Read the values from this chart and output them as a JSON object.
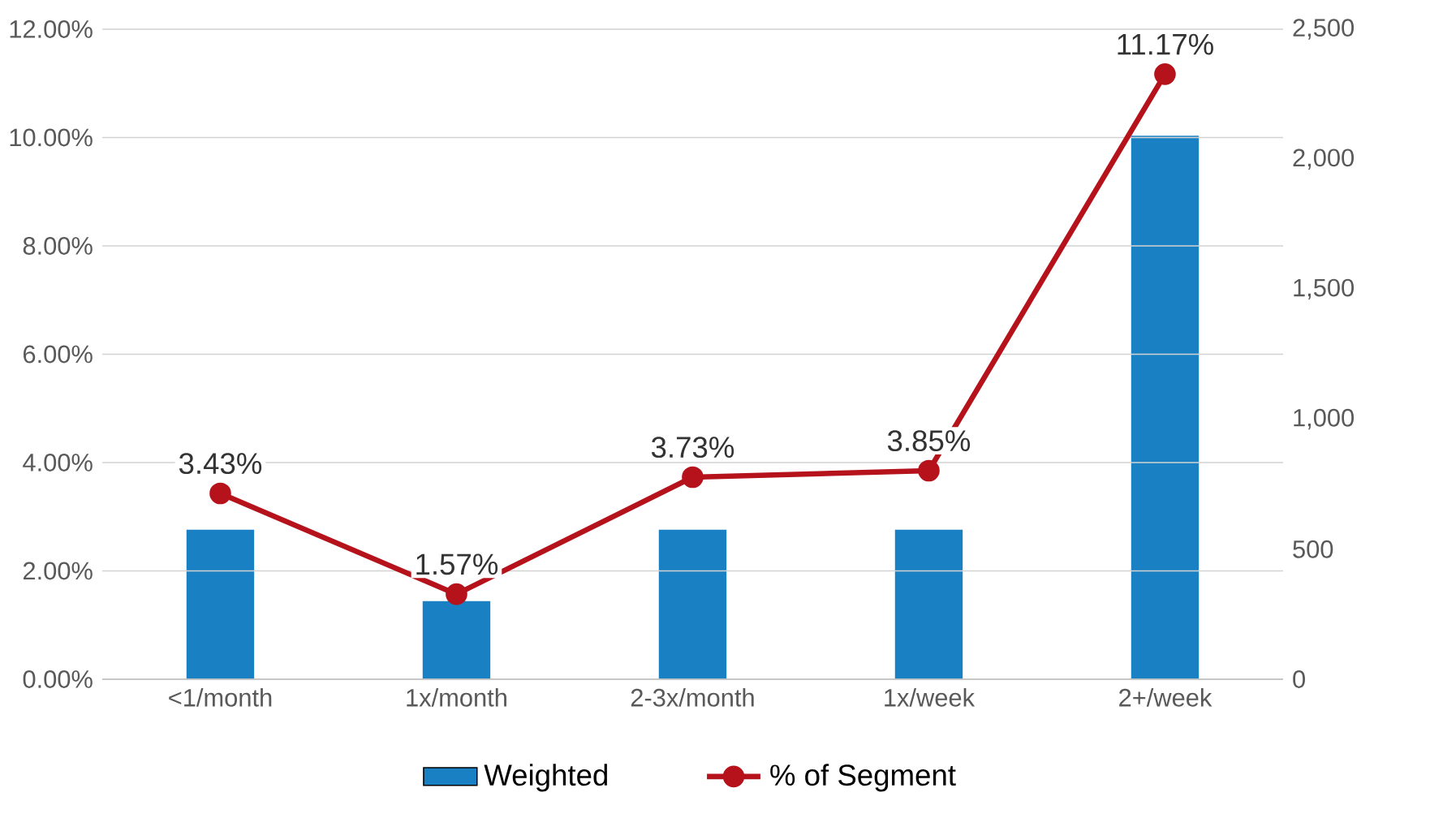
{
  "chart_data": {
    "type": "bar",
    "categories": [
      "<1/month",
      "1x/month",
      "2-3x/month",
      "1x/week",
      "2+/week"
    ],
    "series": [
      {
        "name": "Weighted",
        "axis": "y2",
        "color": "#1a80c4",
        "values": [
          575,
          300,
          575,
          575,
          2090
        ]
      },
      {
        "name": "% of Segment",
        "type": "line",
        "color": "#b5121b",
        "marker": "circle",
        "values": [
          3.43,
          1.57,
          3.73,
          3.85,
          11.17
        ],
        "value_labels": [
          "3.43%",
          "1.57%",
          "3.73%",
          "3.85%",
          "11.17%"
        ]
      }
    ],
    "ylim": [
      0,
      12
    ],
    "yticks": [
      {
        "value": 0,
        "label": "0.00%"
      },
      {
        "value": 2,
        "label": "2.00%"
      },
      {
        "value": 4,
        "label": "4.00%"
      },
      {
        "value": 6,
        "label": "6.00%"
      },
      {
        "value": 8,
        "label": "8.00%"
      },
      {
        "value": 10,
        "label": "10.00%"
      },
      {
        "value": 12,
        "label": "12.00%"
      }
    ],
    "y2lim": [
      0,
      2500
    ],
    "y2ticks": [
      0,
      500,
      {
        "value": 1000,
        "label": "1,000"
      },
      {
        "value": 1500,
        "label": "1,500"
      },
      {
        "value": 2000,
        "label": "2,000"
      },
      {
        "value": 2500,
        "label": "2,500"
      }
    ],
    "grid": "y",
    "legend": "bottom"
  }
}
